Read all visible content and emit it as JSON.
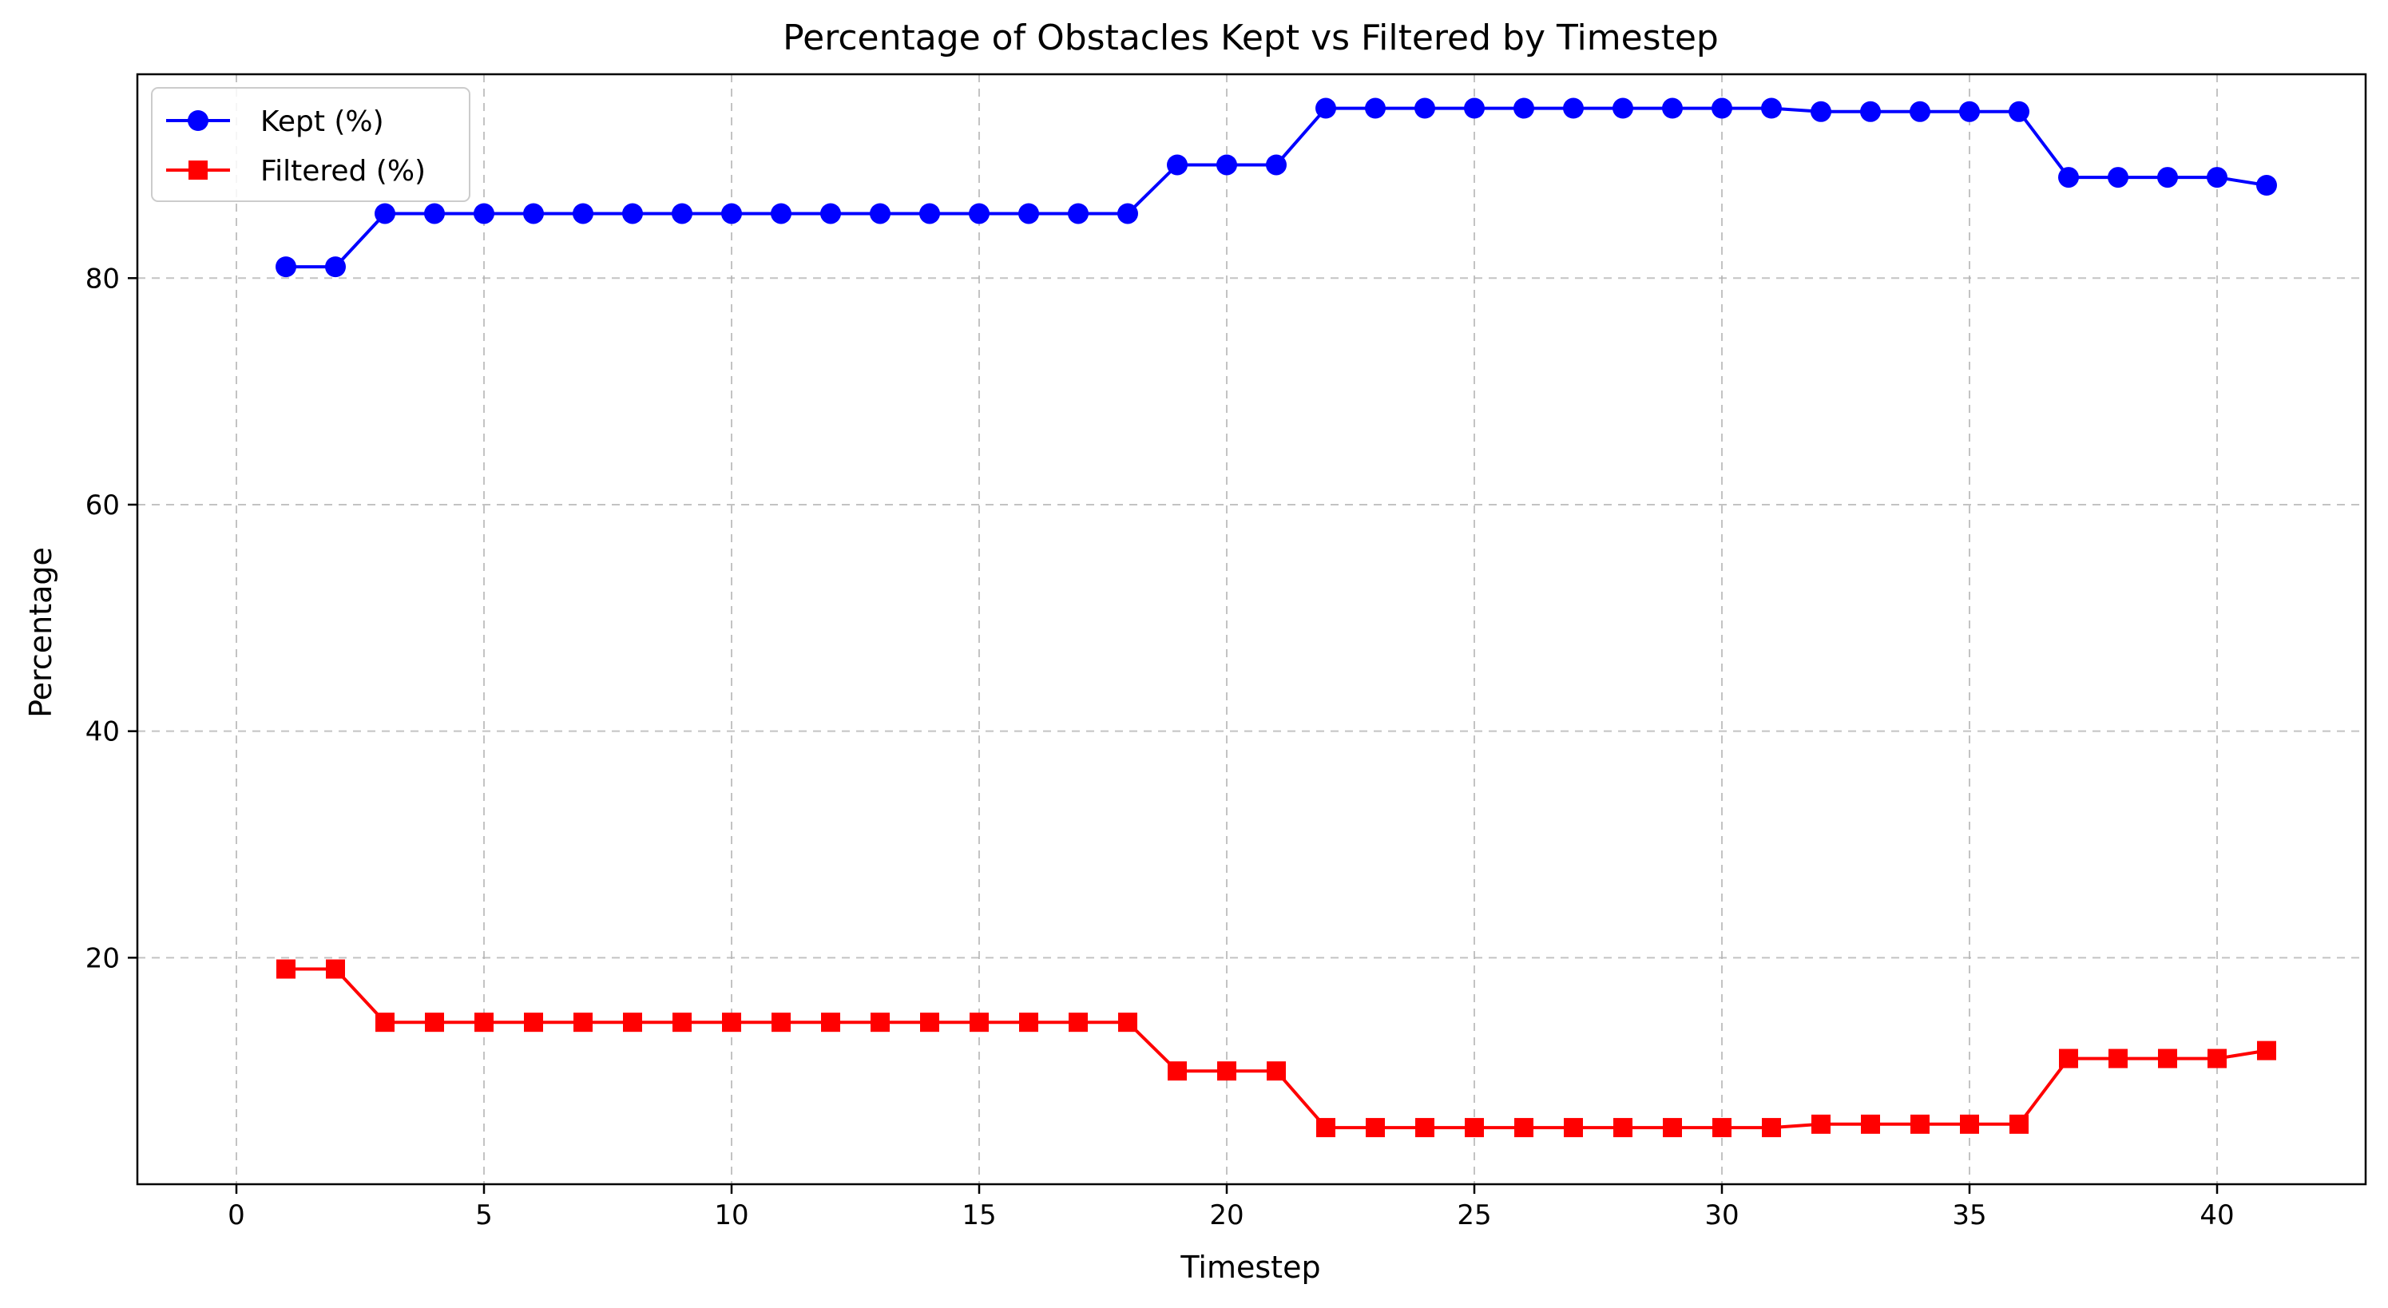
{
  "chart_data": {
    "type": "line",
    "title": "Percentage of Obstacles Kept vs Filtered by Timestep",
    "xlabel": "Timestep",
    "ylabel": "Percentage",
    "xlim": [
      -2,
      43
    ],
    "ylim": [
      0,
      98
    ],
    "xticks": [
      0,
      5,
      10,
      15,
      20,
      25,
      30,
      35,
      40
    ],
    "yticks": [
      20,
      40,
      60,
      80
    ],
    "grid": true,
    "legend_position": "upper-left",
    "x": [
      1,
      2,
      3,
      4,
      5,
      6,
      7,
      8,
      9,
      10,
      11,
      12,
      13,
      14,
      15,
      16,
      17,
      18,
      19,
      20,
      21,
      22,
      23,
      24,
      25,
      26,
      27,
      28,
      29,
      30,
      31,
      32,
      33,
      34,
      35,
      36,
      37,
      38,
      39,
      40,
      41
    ],
    "series": [
      {
        "name": "Kept (%)",
        "color": "#0000ff",
        "marker": "circle",
        "values": [
          81.0,
          81.0,
          85.7,
          85.7,
          85.7,
          85.7,
          85.7,
          85.7,
          85.7,
          85.7,
          85.7,
          85.7,
          85.7,
          85.7,
          85.7,
          85.7,
          85.7,
          85.7,
          90.0,
          90.0,
          90.0,
          95.0,
          95.0,
          95.0,
          95.0,
          95.0,
          95.0,
          95.0,
          95.0,
          95.0,
          95.0,
          94.7,
          94.7,
          94.7,
          94.7,
          94.7,
          88.9,
          88.9,
          88.9,
          88.9,
          88.2
        ]
      },
      {
        "name": "Filtered (%)",
        "color": "#ff0000",
        "marker": "square",
        "values": [
          19.0,
          19.0,
          14.3,
          14.3,
          14.3,
          14.3,
          14.3,
          14.3,
          14.3,
          14.3,
          14.3,
          14.3,
          14.3,
          14.3,
          14.3,
          14.3,
          14.3,
          14.3,
          10.0,
          10.0,
          10.0,
          5.0,
          5.0,
          5.0,
          5.0,
          5.0,
          5.0,
          5.0,
          5.0,
          5.0,
          5.0,
          5.3,
          5.3,
          5.3,
          5.3,
          5.3,
          11.1,
          11.1,
          11.1,
          11.1,
          11.8
        ]
      }
    ]
  }
}
